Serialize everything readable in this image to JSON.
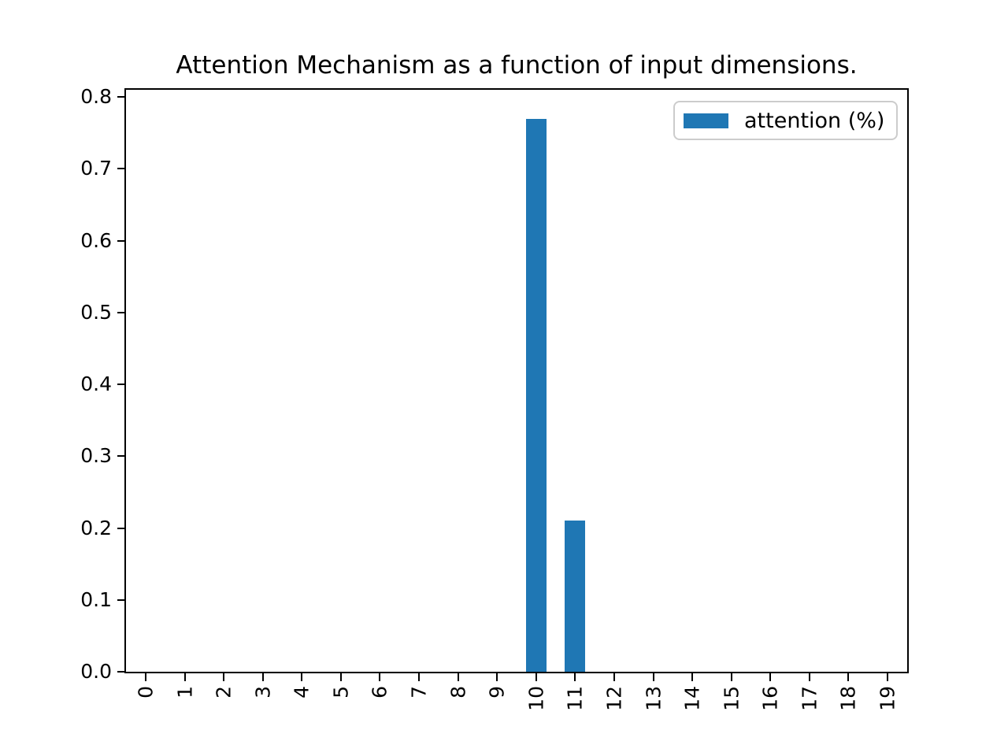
{
  "chart_data": {
    "type": "bar",
    "title": "Attention Mechanism as a function of input dimensions.",
    "categories": [
      "0",
      "1",
      "2",
      "3",
      "4",
      "5",
      "6",
      "7",
      "8",
      "9",
      "10",
      "11",
      "12",
      "13",
      "14",
      "15",
      "16",
      "17",
      "18",
      "19"
    ],
    "series": [
      {
        "name": "attention (%)",
        "values": [
          0,
          0,
          0,
          0,
          0,
          0,
          0,
          0,
          0,
          0,
          0.77,
          0.21,
          0,
          0,
          0,
          0,
          0,
          0,
          0,
          0
        ]
      }
    ],
    "xlabel": "",
    "ylabel": "",
    "ylim": [
      0,
      0.81
    ],
    "yticks": [
      0.0,
      0.1,
      0.2,
      0.3,
      0.4,
      0.5,
      0.6,
      0.7,
      0.8
    ],
    "ytick_format_decimals": 1,
    "bar_color": "#1f77b4",
    "axis_color": "#000000",
    "grid": false,
    "legend": {
      "position": "upper right",
      "entries": [
        "attention (%)"
      ],
      "border_color": "#cccccc"
    }
  }
}
